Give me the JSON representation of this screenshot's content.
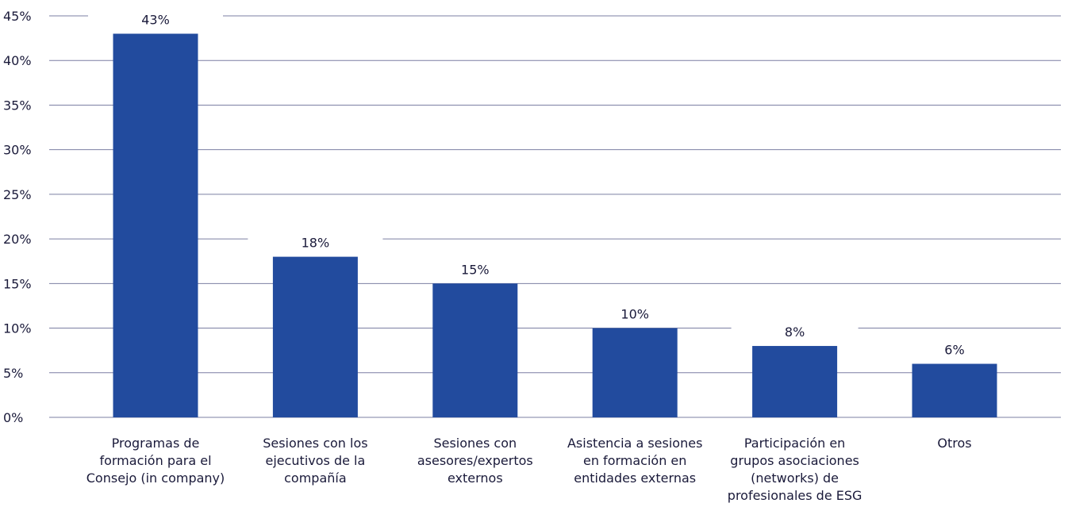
{
  "chart_data": {
    "type": "bar",
    "categories": [
      "Programas de formación para el Consejo (in company)",
      "Sesiones con los ejecutivos de la compañía",
      "Sesiones con asesores/expertos externos",
      "Asistencia a sesiones en formación en entidades externas",
      "Participación en grupos asociaciones (networks) de profesionales de ESG",
      "Otros"
    ],
    "category_lines": [
      [
        "Programas de",
        "formación para el",
        "Consejo (in company)"
      ],
      [
        "Sesiones con los",
        "ejecutivos de la",
        "compañía"
      ],
      [
        "Sesiones con",
        "asesores/expertos",
        "externos"
      ],
      [
        "Asistencia a sesiones",
        "en formación en",
        "entidades externas"
      ],
      [
        "Participación en",
        "grupos asociaciones",
        "(networks) de",
        "profesionales de ESG"
      ],
      [
        "Otros"
      ]
    ],
    "values": [
      43,
      18,
      15,
      10,
      8,
      6
    ],
    "data_labels": [
      "43%",
      "18%",
      "15%",
      "10%",
      "8%",
      "6%"
    ],
    "yticks": [
      0,
      5,
      10,
      15,
      20,
      25,
      30,
      35,
      40,
      45
    ],
    "ytick_labels": [
      "0%",
      "5%",
      "10%",
      "15%",
      "20%",
      "25%",
      "30%",
      "35%",
      "40%",
      "45%"
    ],
    "ylim": [
      0,
      45
    ],
    "grid": true,
    "colors": {
      "bar": "#224b9e",
      "grid": "#7b7fa3",
      "text": "#1a1a3a"
    }
  }
}
